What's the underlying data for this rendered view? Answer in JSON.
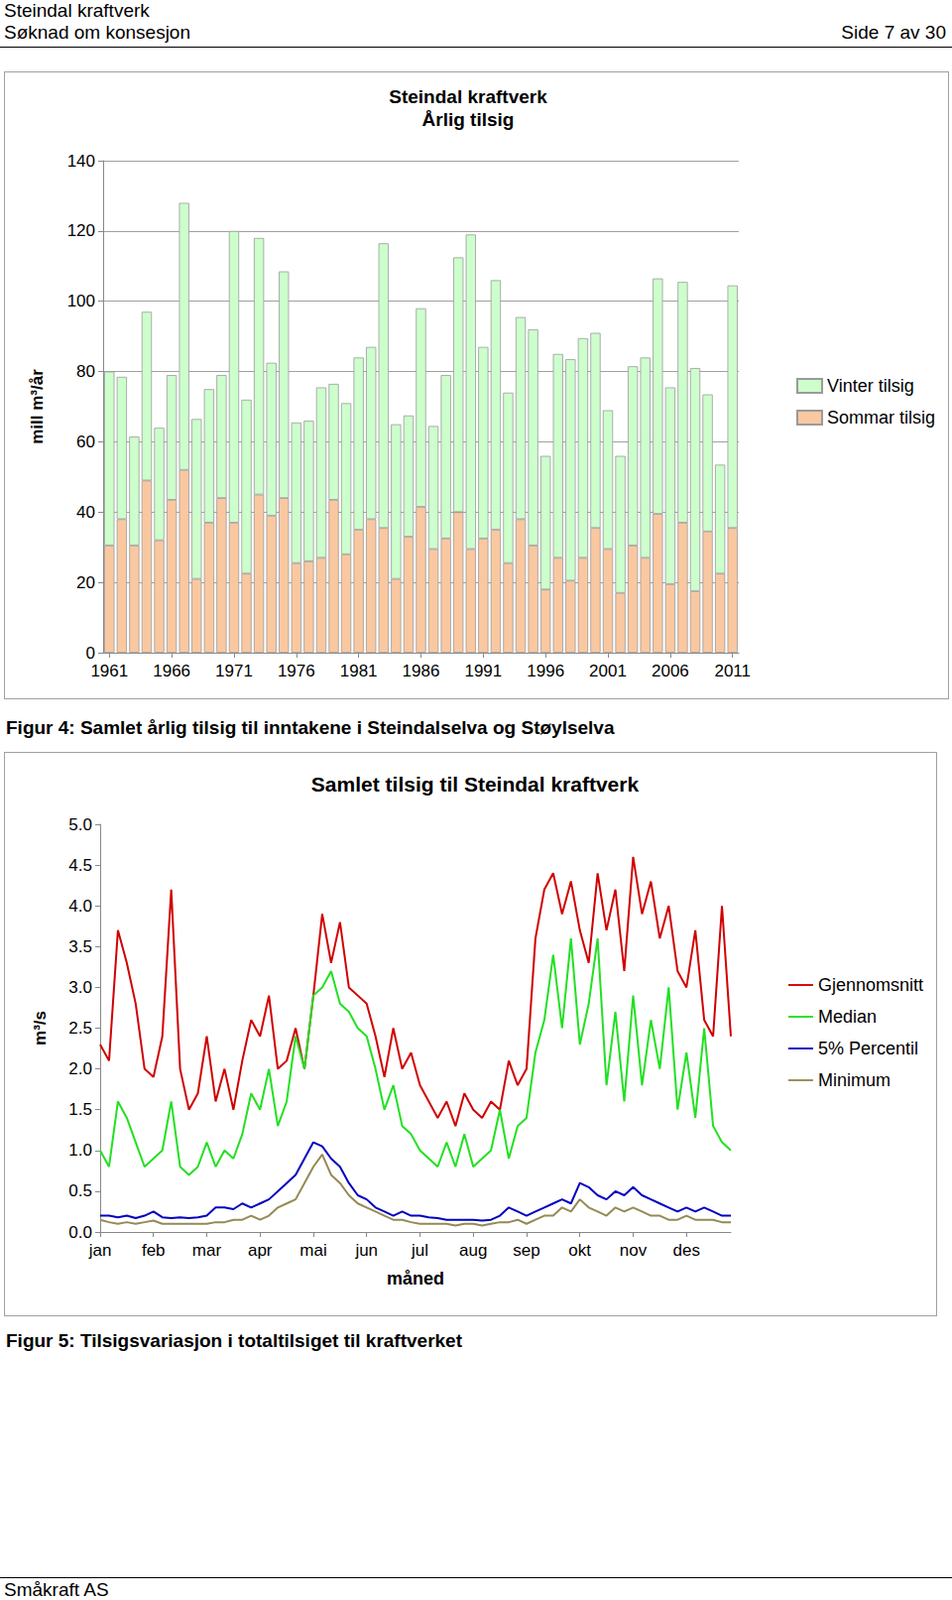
{
  "header": {
    "title": "Steindal kraftverk",
    "subtitle": "Søknad om konsesjon",
    "page": "Side 7 av 30"
  },
  "chart_data": [
    {
      "type": "bar",
      "title": "Steindal kraftverk",
      "subtitle": "Årlig tilsig",
      "y_label": "mill m³/år",
      "stacked": true,
      "grid": true,
      "legend": "right",
      "ylim": [
        0,
        140
      ],
      "yticks": [
        0,
        20,
        40,
        60,
        80,
        100,
        120,
        140
      ],
      "categories": [
        "1961",
        null,
        null,
        null,
        null,
        "1966",
        null,
        null,
        null,
        null,
        "1971",
        null,
        null,
        null,
        null,
        "1976",
        null,
        null,
        null,
        null,
        "1981",
        null,
        null,
        null,
        null,
        "1986",
        null,
        null,
        null,
        null,
        "1991",
        null,
        null,
        null,
        null,
        "1996",
        null,
        null,
        null,
        null,
        "2001",
        null,
        null,
        null,
        null,
        "2006",
        null,
        null,
        null,
        null,
        "2011"
      ],
      "series": [
        {
          "name": "Sommar tilsig",
          "color": "#fac8a0",
          "values": [
            30.5,
            38,
            30.5,
            49,
            32,
            43.5,
            52,
            21,
            37,
            44,
            37,
            22.5,
            45,
            39,
            44,
            25.5,
            26,
            27,
            43.5,
            28,
            35,
            38,
            35.5,
            21,
            33,
            41.5,
            29.5,
            32.5,
            40,
            29.5,
            32.5,
            35,
            25.5,
            38,
            30.5,
            18,
            27,
            20.5,
            27,
            35.5,
            29.5,
            17,
            30.5,
            27,
            39.5,
            19.5,
            37,
            17.5,
            34.5,
            22.5,
            35.5
          ]
        },
        {
          "name": "Vinter tilsig",
          "color": "#ccffcc",
          "values": [
            49.5,
            40.5,
            31,
            48,
            32,
            35.5,
            76,
            45.5,
            38,
            35,
            83,
            49.5,
            73,
            43.5,
            64.5,
            40,
            40,
            48.5,
            33,
            43,
            49,
            49,
            81,
            44,
            34.5,
            56.5,
            35,
            46.5,
            72.5,
            89.5,
            54.5,
            71,
            48.5,
            57.5,
            61.5,
            38,
            58,
            63,
            62.5,
            55.5,
            39.5,
            39,
            51,
            57,
            67,
            56,
            68.5,
            63.5,
            39,
            31,
            69
          ]
        }
      ]
    },
    {
      "type": "line",
      "title": "Samlet tilsig til Steindal kraftverk",
      "x_label": "måned",
      "y_label": "m³/s",
      "grid": false,
      "legend": "right",
      "ylim": [
        0,
        5
      ],
      "yticks": [
        {
          "value": 0,
          "label": "0.0"
        },
        {
          "value": 0.5,
          "label": "0.5"
        },
        {
          "value": 1,
          "label": "1.0"
        },
        {
          "value": 1.5,
          "label": "1.5"
        },
        {
          "value": 2,
          "label": "2.0"
        },
        {
          "value": 2.5,
          "label": "2.5"
        },
        {
          "value": 3,
          "label": "3.0"
        },
        {
          "value": 3.5,
          "label": "3.5"
        },
        {
          "value": 4,
          "label": "4.0"
        },
        {
          "value": 4.5,
          "label": "4.5"
        },
        {
          "value": 5,
          "label": "5.0"
        }
      ],
      "categories": [
        "jan",
        null,
        null,
        null,
        null,
        null,
        "feb",
        null,
        null,
        null,
        null,
        null,
        "mar",
        null,
        null,
        null,
        null,
        null,
        "apr",
        null,
        null,
        null,
        null,
        null,
        "mai",
        null,
        null,
        null,
        null,
        null,
        "jun",
        null,
        null,
        null,
        null,
        null,
        "jul",
        null,
        null,
        null,
        null,
        null,
        "aug",
        null,
        null,
        null,
        null,
        null,
        "sep",
        null,
        null,
        null,
        null,
        null,
        "okt",
        null,
        null,
        null,
        null,
        null,
        "nov",
        null,
        null,
        null,
        null,
        null,
        "des",
        null,
        null,
        null,
        null,
        null
      ],
      "series": [
        {
          "name": "Gjennomsnitt",
          "color": "#d00000",
          "values": [
            2.3,
            2.1,
            3.7,
            3.3,
            2.8,
            2.0,
            1.9,
            2.4,
            4.2,
            2.0,
            1.5,
            1.7,
            2.4,
            1.6,
            2.0,
            1.5,
            2.1,
            2.6,
            2.4,
            2.9,
            2.0,
            2.1,
            2.5,
            2.0,
            2.9,
            3.9,
            3.3,
            3.8,
            3.0,
            2.9,
            2.8,
            2.4,
            1.9,
            2.5,
            2.0,
            2.2,
            1.8,
            1.6,
            1.4,
            1.6,
            1.3,
            1.7,
            1.5,
            1.4,
            1.6,
            1.5,
            2.1,
            1.8,
            2.0,
            3.6,
            4.2,
            4.4,
            3.9,
            4.3,
            3.7,
            3.3,
            4.4,
            3.7,
            4.2,
            3.2,
            4.6,
            3.9,
            4.3,
            3.6,
            4.0,
            3.2,
            3.0,
            3.7,
            2.6,
            2.4,
            4.0,
            2.4
          ]
        },
        {
          "name": "Median",
          "color": "#22e022",
          "values": [
            1.0,
            0.8,
            1.6,
            1.4,
            1.1,
            0.8,
            0.9,
            1.0,
            1.6,
            0.8,
            0.7,
            0.8,
            1.1,
            0.8,
            1.0,
            0.9,
            1.2,
            1.7,
            1.5,
            2.0,
            1.3,
            1.6,
            2.4,
            2.0,
            2.9,
            3.0,
            3.2,
            2.8,
            2.7,
            2.5,
            2.4,
            2.0,
            1.5,
            1.8,
            1.3,
            1.2,
            1.0,
            0.9,
            0.8,
            1.1,
            0.8,
            1.2,
            0.8,
            0.9,
            1.0,
            1.5,
            0.9,
            1.3,
            1.4,
            2.2,
            2.6,
            3.4,
            2.5,
            3.6,
            2.3,
            2.8,
            3.6,
            1.8,
            2.7,
            1.6,
            2.9,
            1.8,
            2.6,
            2.0,
            3.0,
            1.5,
            2.2,
            1.4,
            2.5,
            1.3,
            1.1,
            1.0
          ]
        },
        {
          "name": "5% Percentil",
          "color": "#0000c0",
          "values": [
            0.2,
            0.2,
            0.18,
            0.2,
            0.17,
            0.2,
            0.25,
            0.18,
            0.17,
            0.18,
            0.17,
            0.18,
            0.2,
            0.3,
            0.3,
            0.28,
            0.35,
            0.3,
            0.35,
            0.4,
            0.5,
            0.6,
            0.7,
            0.9,
            1.1,
            1.05,
            0.9,
            0.8,
            0.6,
            0.45,
            0.4,
            0.3,
            0.25,
            0.2,
            0.25,
            0.2,
            0.2,
            0.18,
            0.17,
            0.15,
            0.15,
            0.15,
            0.15,
            0.14,
            0.15,
            0.2,
            0.3,
            0.25,
            0.2,
            0.25,
            0.3,
            0.35,
            0.4,
            0.35,
            0.6,
            0.55,
            0.45,
            0.4,
            0.5,
            0.45,
            0.55,
            0.45,
            0.4,
            0.35,
            0.3,
            0.25,
            0.3,
            0.25,
            0.3,
            0.25,
            0.2,
            0.2
          ]
        },
        {
          "name": "Minimum",
          "color": "#948a54",
          "values": [
            0.15,
            0.12,
            0.1,
            0.12,
            0.1,
            0.12,
            0.14,
            0.1,
            0.1,
            0.1,
            0.1,
            0.1,
            0.1,
            0.12,
            0.12,
            0.15,
            0.15,
            0.2,
            0.15,
            0.2,
            0.3,
            0.35,
            0.4,
            0.6,
            0.8,
            0.95,
            0.7,
            0.6,
            0.45,
            0.35,
            0.3,
            0.25,
            0.2,
            0.15,
            0.15,
            0.12,
            0.1,
            0.1,
            0.1,
            0.1,
            0.08,
            0.1,
            0.1,
            0.08,
            0.1,
            0.12,
            0.12,
            0.15,
            0.1,
            0.15,
            0.2,
            0.2,
            0.3,
            0.25,
            0.4,
            0.3,
            0.25,
            0.2,
            0.3,
            0.25,
            0.3,
            0.25,
            0.2,
            0.2,
            0.15,
            0.15,
            0.2,
            0.15,
            0.15,
            0.15,
            0.12,
            0.12
          ]
        }
      ]
    }
  ],
  "captions": [
    "Figur 4: Samlet årlig tilsig til inntakene i Steindalselva og Støylselva",
    "Figur 5: Tilsigsvariasjon i totaltilsiget til kraftverket"
  ],
  "footer": "Småkraft AS"
}
